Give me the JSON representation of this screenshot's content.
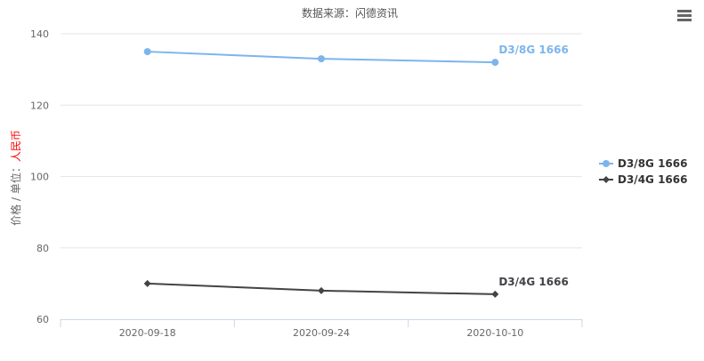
{
  "chart_data": {
    "type": "line",
    "title": "数据来源：闪德资讯",
    "ylabel_prefix": "价格 / 单位：",
    "ylabel_unit": "人民币",
    "categories": [
      "2020-09-18",
      "2020-09-24",
      "2020-10-10"
    ],
    "ylim": [
      60,
      140
    ],
    "yticks": [
      60,
      80,
      100,
      120,
      140
    ],
    "grid": true,
    "legend_position": "right",
    "series": [
      {
        "name": "D3/8G 1666",
        "values": [
          135,
          133,
          132
        ],
        "color": "#7cb5ec",
        "marker": "circle"
      },
      {
        "name": "D3/4G 1666",
        "values": [
          70,
          68,
          67
        ],
        "color": "#434348",
        "marker": "diamond"
      }
    ]
  },
  "menu_icon": "hamburger-menu-icon",
  "colors": {
    "unit": "#ff0000",
    "axis": "#ccd6eb",
    "grid": "#e6e6e6"
  }
}
